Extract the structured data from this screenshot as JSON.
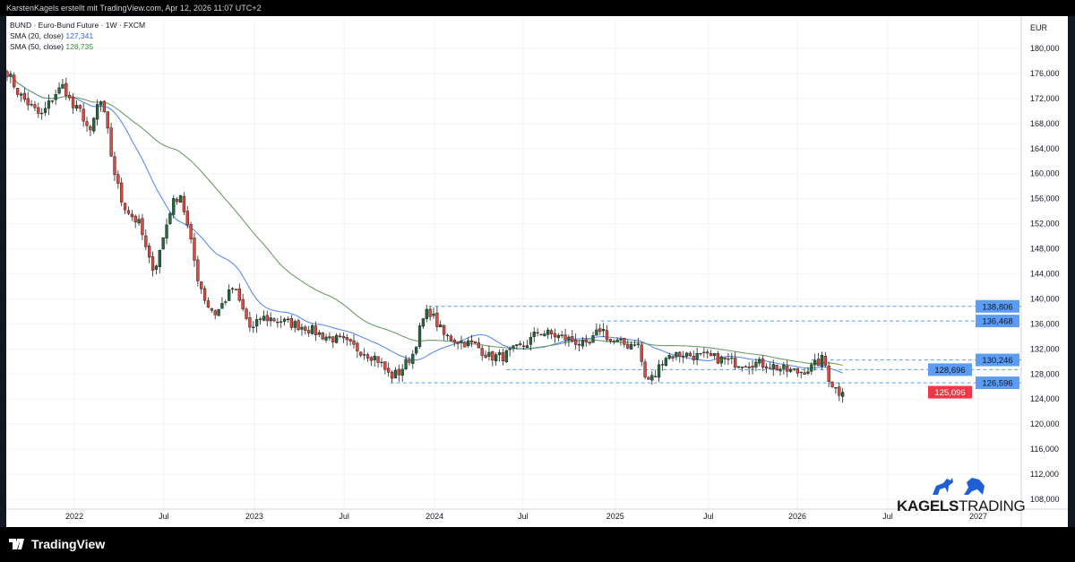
{
  "header": {
    "title": "KarstenKagels erstellt mit TradingView.com, Apr 12, 2026 11:07 UTC+2"
  },
  "legend": {
    "symbol": "BUND · Euro-Bund Future · 1W · FXCM",
    "sma20_label": "SMA (20, close)",
    "sma20_value": "127,341",
    "sma50_label": "SMA (50, close)",
    "sma50_value": "128,735"
  },
  "branding": {
    "logo_bold": "KAGELS",
    "logo_light": "TRADING",
    "footer": "TradingView"
  },
  "chart_data": {
    "type": "candlestick",
    "title": "BUND · Euro-Bund Future · 1W · FXCM",
    "currency": "EUR",
    "ylim": [
      106000,
      182000
    ],
    "y_ticks": [
      108000,
      112000,
      116000,
      120000,
      124000,
      128000,
      132000,
      136000,
      140000,
      144000,
      148000,
      152000,
      156000,
      160000,
      164000,
      168000,
      172000,
      176000,
      180000
    ],
    "y_tick_labels": [
      "108,000",
      "112,000",
      "116,000",
      "120,000",
      "124,000",
      "128,000",
      "132,000",
      "136,000",
      "140,000",
      "144,000",
      "148,000",
      "152,000",
      "156,000",
      "160,000",
      "164,000",
      "168,000",
      "172,000",
      "176,000",
      "180,000"
    ],
    "x_ticks": [
      {
        "label": "2022",
        "week": 19.4
      },
      {
        "label": "Jul",
        "week": 45.2
      },
      {
        "label": "2023",
        "week": 71.3
      },
      {
        "label": "Jul",
        "week": 97.2
      },
      {
        "label": "2024",
        "week": 123.3
      },
      {
        "label": "Jul",
        "week": 148.8
      },
      {
        "label": "2025",
        "week": 175.4
      },
      {
        "label": "Jul",
        "week": 202.3
      },
      {
        "label": "2026",
        "week": 227.9
      },
      {
        "label": "Jul",
        "week": 254.0
      },
      {
        "label": "2027",
        "week": 280.1
      }
    ],
    "week_range": [
      0,
      294
    ],
    "close_keypoints": [
      [
        0,
        176.3
      ],
      [
        3.4,
        172.7
      ],
      [
        9.8,
        169.1
      ],
      [
        13.7,
        172.7
      ],
      [
        16.3,
        174.1
      ],
      [
        18.9,
        170.6
      ],
      [
        21.4,
        169.8
      ],
      [
        24,
        166.3
      ],
      [
        26.6,
        172.2
      ],
      [
        28.7,
        167.7
      ],
      [
        30.5,
        161.2
      ],
      [
        33.1,
        155.5
      ],
      [
        35.7,
        153.4
      ],
      [
        38.2,
        151.9
      ],
      [
        40.8,
        146.2
      ],
      [
        42.6,
        144.8
      ],
      [
        44.7,
        149.1
      ],
      [
        47.3,
        154.8
      ],
      [
        49.9,
        157.0
      ],
      [
        52.4,
        150.5
      ],
      [
        55,
        143.4
      ],
      [
        57.6,
        139.1
      ],
      [
        60.2,
        137.6
      ],
      [
        62.8,
        139.8
      ],
      [
        65.3,
        141.9
      ],
      [
        67.9,
        138.3
      ],
      [
        70.5,
        134.8
      ],
      [
        73.1,
        136.9
      ],
      [
        75.7,
        136.9
      ],
      [
        80.8,
        136.2
      ],
      [
        86,
        135.5
      ],
      [
        91.2,
        134.1
      ],
      [
        96.4,
        133.3
      ],
      [
        101.5,
        131.9
      ],
      [
        106.7,
        130.5
      ],
      [
        110.5,
        127.6
      ],
      [
        113.1,
        128.3
      ],
      [
        117,
        131.2
      ],
      [
        119.6,
        136.2
      ],
      [
        121.6,
        138.3
      ],
      [
        123.5,
        136.5
      ],
      [
        126.1,
        134.1
      ],
      [
        130,
        133.3
      ],
      [
        135.1,
        132.6
      ],
      [
        139,
        130.8
      ],
      [
        142.9,
        130.8
      ],
      [
        145.5,
        131.6
      ],
      [
        149.4,
        132.6
      ],
      [
        153.2,
        134.8
      ],
      [
        158.4,
        134.1
      ],
      [
        163.6,
        133.3
      ],
      [
        167.4,
        132.2
      ],
      [
        171.3,
        135.5
      ],
      [
        173.9,
        133.3
      ],
      [
        179.1,
        132.6
      ],
      [
        181.7,
        133.3
      ],
      [
        184.2,
        126.9
      ],
      [
        186.8,
        127.6
      ],
      [
        189.4,
        130.8
      ],
      [
        194.6,
        131.2
      ],
      [
        199.7,
        130.8
      ],
      [
        204.9,
        130.5
      ],
      [
        210.1,
        129.8
      ],
      [
        215.2,
        129.8
      ],
      [
        220.4,
        129.4
      ],
      [
        224.3,
        128.6
      ],
      [
        228.2,
        128.3
      ],
      [
        232,
        129.0
      ],
      [
        235.4,
        130.5
      ],
      [
        237.2,
        127.0
      ],
      [
        239.8,
        125.1
      ],
      [
        241.8,
        125.1
      ]
    ],
    "sma_periods": [
      20,
      50
    ],
    "sma_colors": [
      "#5b8def",
      "#6f9c6a"
    ],
    "candle_colors": {
      "up": "#1f6b3b",
      "down": "#e8453c"
    },
    "levels": [
      {
        "value": 138806,
        "label": "138,806",
        "from_week": 121.6
      },
      {
        "value": 136468,
        "label": "136,468",
        "from_week": 171.3
      },
      {
        "value": 130246,
        "label": "130,246",
        "from_week": 232
      },
      {
        "value": 128696,
        "label": "128,696",
        "from_week": 144
      },
      {
        "value": 126596,
        "label": "126,596",
        "from_week": 110.5
      }
    ],
    "last_price": {
      "value": 125096,
      "label": "125,096",
      "color": "#f23645"
    },
    "level_color": "#5b9cf6"
  }
}
